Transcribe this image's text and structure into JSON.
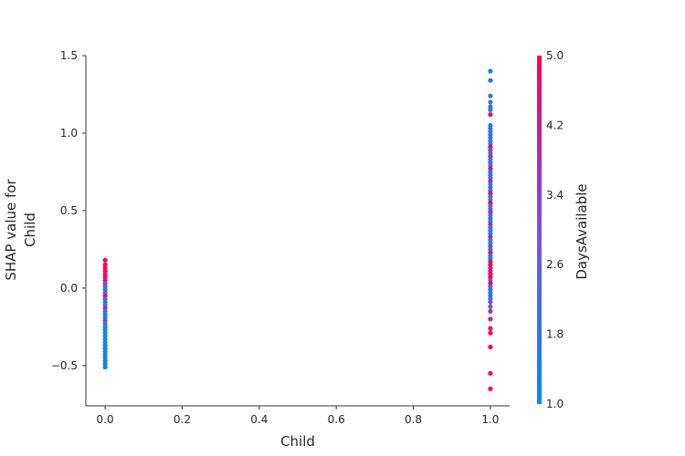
{
  "chart_data": {
    "type": "scatter",
    "xlabel": "Child",
    "ylabel_lines": [
      "SHAP value for",
      "Child"
    ],
    "xlim": [
      -0.05,
      1.05
    ],
    "ylim": [
      -0.76,
      1.5
    ],
    "xticks": [
      0.0,
      0.2,
      0.4,
      0.6,
      0.8,
      1.0
    ],
    "xtick_labels": [
      "0.0",
      "0.2",
      "0.4",
      "0.6",
      "0.8",
      "1.0"
    ],
    "yticks": [
      -0.5,
      0.0,
      0.5,
      1.0,
      1.5
    ],
    "ytick_labels": [
      "−0.5",
      "0.0",
      "0.5",
      "1.0",
      "1.5"
    ],
    "grid": false,
    "colorbar": {
      "label": "DaysAvailable",
      "range": [
        1.0,
        5.0
      ],
      "ticks": [
        1.0,
        1.8,
        2.6,
        3.4,
        4.2,
        5.0
      ],
      "tick_labels": [
        "1.0",
        "1.8",
        "2.6",
        "3.4",
        "4.2",
        "5.0"
      ],
      "colors": [
        "#008bfb",
        "#7a4fd8",
        "#ff0052"
      ]
    },
    "points": [
      {
        "x": 0,
        "y": 0.18,
        "c": 5.0
      },
      {
        "x": 0,
        "y": 0.15,
        "c": 5.0
      },
      {
        "x": 0,
        "y": 0.13,
        "c": 4.8
      },
      {
        "x": 0,
        "y": 0.11,
        "c": 5.0
      },
      {
        "x": 0,
        "y": 0.09,
        "c": 4.6
      },
      {
        "x": 0,
        "y": 0.07,
        "c": 5.0
      },
      {
        "x": 0,
        "y": 0.05,
        "c": 4.4
      },
      {
        "x": 0,
        "y": 0.03,
        "c": 3.2
      },
      {
        "x": 0,
        "y": 0.01,
        "c": 2.2
      },
      {
        "x": 0,
        "y": -0.01,
        "c": 1.6
      },
      {
        "x": 0,
        "y": -0.03,
        "c": 3.0
      },
      {
        "x": 0,
        "y": -0.05,
        "c": 4.8
      },
      {
        "x": 0,
        "y": -0.07,
        "c": 1.8
      },
      {
        "x": 0,
        "y": -0.09,
        "c": 2.4
      },
      {
        "x": 0,
        "y": -0.11,
        "c": 1.4
      },
      {
        "x": 0,
        "y": -0.13,
        "c": 4.2
      },
      {
        "x": 0,
        "y": -0.15,
        "c": 1.2
      },
      {
        "x": 0,
        "y": -0.17,
        "c": 2.0
      },
      {
        "x": 0,
        "y": -0.19,
        "c": 1.0
      },
      {
        "x": 0,
        "y": -0.21,
        "c": 3.6
      },
      {
        "x": 0,
        "y": -0.23,
        "c": 1.2
      },
      {
        "x": 0,
        "y": -0.25,
        "c": 1.0
      },
      {
        "x": 0,
        "y": -0.27,
        "c": 1.4
      },
      {
        "x": 0,
        "y": -0.29,
        "c": 1.0
      },
      {
        "x": 0,
        "y": -0.31,
        "c": 1.2
      },
      {
        "x": 0,
        "y": -0.33,
        "c": 1.0
      },
      {
        "x": 0,
        "y": -0.35,
        "c": 1.6
      },
      {
        "x": 0,
        "y": -0.37,
        "c": 1.0
      },
      {
        "x": 0,
        "y": -0.39,
        "c": 1.2
      },
      {
        "x": 0,
        "y": -0.41,
        "c": 1.0
      },
      {
        "x": 0,
        "y": -0.43,
        "c": 2.0
      },
      {
        "x": 0,
        "y": -0.45,
        "c": 1.0
      },
      {
        "x": 0,
        "y": -0.47,
        "c": 1.2
      },
      {
        "x": 0,
        "y": -0.49,
        "c": 1.4
      },
      {
        "x": 0,
        "y": -0.51,
        "c": 1.2
      },
      {
        "x": 1,
        "y": 1.4,
        "c": 1.2
      },
      {
        "x": 1,
        "y": 1.34,
        "c": 1.8
      },
      {
        "x": 1,
        "y": 1.24,
        "c": 2.0
      },
      {
        "x": 1,
        "y": 1.2,
        "c": 2.2
      },
      {
        "x": 1,
        "y": 1.17,
        "c": 1.6
      },
      {
        "x": 1,
        "y": 1.15,
        "c": 2.0
      },
      {
        "x": 1,
        "y": 1.12,
        "c": 4.6
      },
      {
        "x": 1,
        "y": 1.05,
        "c": 1.4
      },
      {
        "x": 1,
        "y": 1.03,
        "c": 1.8
      },
      {
        "x": 1,
        "y": 1.01,
        "c": 1.2
      },
      {
        "x": 1,
        "y": 0.99,
        "c": 1.6
      },
      {
        "x": 1,
        "y": 0.97,
        "c": 2.4
      },
      {
        "x": 1,
        "y": 0.95,
        "c": 1.2
      },
      {
        "x": 1,
        "y": 0.93,
        "c": 2.0
      },
      {
        "x": 1,
        "y": 0.91,
        "c": 4.8
      },
      {
        "x": 1,
        "y": 0.89,
        "c": 3.6
      },
      {
        "x": 1,
        "y": 0.87,
        "c": 1.2
      },
      {
        "x": 1,
        "y": 0.85,
        "c": 4.2
      },
      {
        "x": 1,
        "y": 0.83,
        "c": 1.6
      },
      {
        "x": 1,
        "y": 0.81,
        "c": 2.6
      },
      {
        "x": 1,
        "y": 0.79,
        "c": 1.4
      },
      {
        "x": 1,
        "y": 0.77,
        "c": 4.4
      },
      {
        "x": 1,
        "y": 0.75,
        "c": 1.8
      },
      {
        "x": 1,
        "y": 0.73,
        "c": 1.2
      },
      {
        "x": 1,
        "y": 0.71,
        "c": 2.2
      },
      {
        "x": 1,
        "y": 0.69,
        "c": 4.0
      },
      {
        "x": 1,
        "y": 0.67,
        "c": 1.4
      },
      {
        "x": 1,
        "y": 0.65,
        "c": 2.8
      },
      {
        "x": 1,
        "y": 0.63,
        "c": 1.6
      },
      {
        "x": 1,
        "y": 0.61,
        "c": 4.6
      },
      {
        "x": 1,
        "y": 0.59,
        "c": 2.4
      },
      {
        "x": 1,
        "y": 0.57,
        "c": 1.2
      },
      {
        "x": 1,
        "y": 0.55,
        "c": 5.0
      },
      {
        "x": 1,
        "y": 0.53,
        "c": 3.0
      },
      {
        "x": 1,
        "y": 0.51,
        "c": 1.8
      },
      {
        "x": 1,
        "y": 0.49,
        "c": 4.2
      },
      {
        "x": 1,
        "y": 0.47,
        "c": 1.4
      },
      {
        "x": 1,
        "y": 0.45,
        "c": 2.6
      },
      {
        "x": 1,
        "y": 0.43,
        "c": 1.2
      },
      {
        "x": 1,
        "y": 0.41,
        "c": 3.8
      },
      {
        "x": 1,
        "y": 0.39,
        "c": 1.6
      },
      {
        "x": 1,
        "y": 0.37,
        "c": 2.2
      },
      {
        "x": 1,
        "y": 0.35,
        "c": 1.2
      },
      {
        "x": 1,
        "y": 0.33,
        "c": 4.4
      },
      {
        "x": 1,
        "y": 0.31,
        "c": 1.8
      },
      {
        "x": 1,
        "y": 0.29,
        "c": 1.4
      },
      {
        "x": 1,
        "y": 0.27,
        "c": 3.4
      },
      {
        "x": 1,
        "y": 0.25,
        "c": 1.2
      },
      {
        "x": 1,
        "y": 0.23,
        "c": 4.8
      },
      {
        "x": 1,
        "y": 0.21,
        "c": 2.0
      },
      {
        "x": 1,
        "y": 0.19,
        "c": 1.6
      },
      {
        "x": 1,
        "y": 0.17,
        "c": 4.6
      },
      {
        "x": 1,
        "y": 0.15,
        "c": 5.0
      },
      {
        "x": 1,
        "y": 0.13,
        "c": 4.2
      },
      {
        "x": 1,
        "y": 0.11,
        "c": 5.0
      },
      {
        "x": 1,
        "y": 0.09,
        "c": 4.8
      },
      {
        "x": 1,
        "y": 0.07,
        "c": 5.0
      },
      {
        "x": 1,
        "y": 0.05,
        "c": 3.2
      },
      {
        "x": 1,
        "y": 0.03,
        "c": 4.6
      },
      {
        "x": 1,
        "y": 0.01,
        "c": 2.4
      },
      {
        "x": 1,
        "y": -0.01,
        "c": 1.6
      },
      {
        "x": 1,
        "y": -0.03,
        "c": 1.2
      },
      {
        "x": 1,
        "y": -0.05,
        "c": 2.0
      },
      {
        "x": 1,
        "y": -0.07,
        "c": 1.4
      },
      {
        "x": 1,
        "y": -0.09,
        "c": 3.0
      },
      {
        "x": 1,
        "y": -0.12,
        "c": 2.6
      },
      {
        "x": 1,
        "y": -0.15,
        "c": 3.6
      },
      {
        "x": 1,
        "y": -0.2,
        "c": 4.0
      },
      {
        "x": 1,
        "y": -0.26,
        "c": 5.0
      },
      {
        "x": 1,
        "y": -0.29,
        "c": 5.0
      },
      {
        "x": 1,
        "y": -0.38,
        "c": 5.0
      },
      {
        "x": 1,
        "y": -0.55,
        "c": 5.0
      },
      {
        "x": 1,
        "y": -0.65,
        "c": 5.0
      }
    ]
  }
}
